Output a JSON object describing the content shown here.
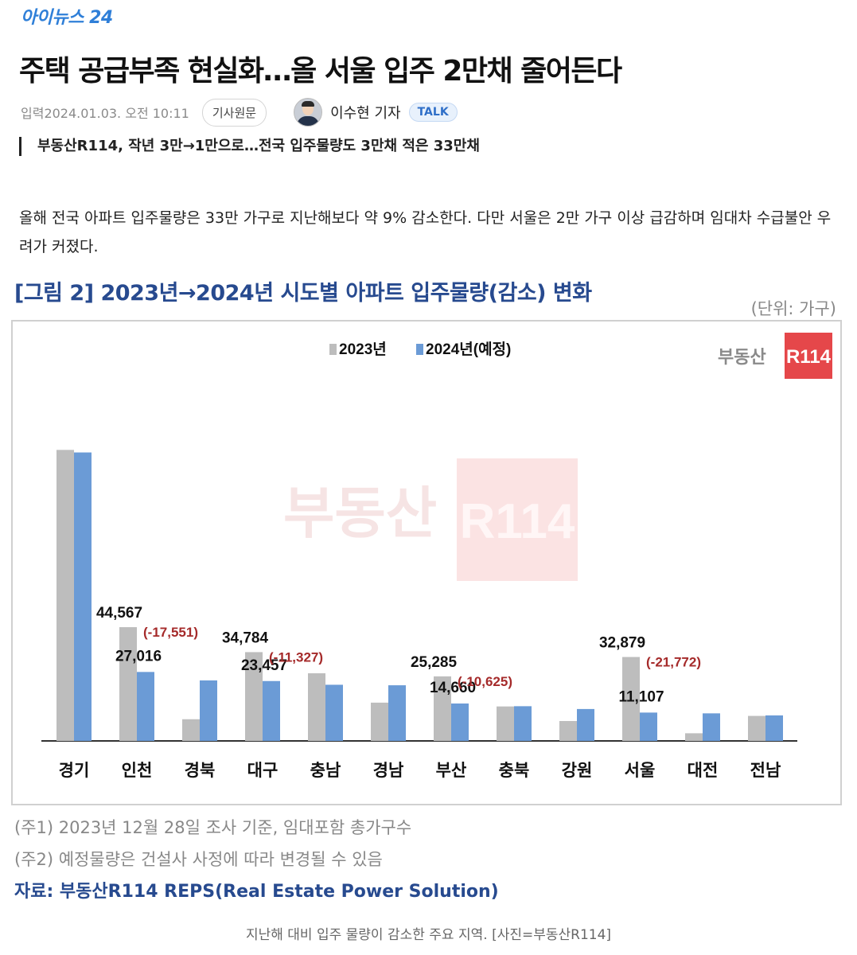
{
  "site": {
    "logo": "아이뉴스 24"
  },
  "article": {
    "headline": "주택 공급부족 현실화…올 서울 입주 2만채 줄어든다",
    "published": "입력2024.01.03. 오전 10:11",
    "original_button": "기사원문",
    "reporter": "이수현 기자",
    "talk_button": "TALK",
    "subheadline": "부동산R114, 작년 3만→1만으로…전국 입주물량도 3만채 적은 33만채",
    "body": "올해 전국 아파트 입주물량은 33만 가구로 지난해보다 약 9% 감소한다. 다만 서울은 2만 가구 이상 급감하며 임대차 수급불안 우려가 커졌다.",
    "photo_caption": "지난해 대비 입주 물량이 감소한 주요 지역. [사진=부동산R114]"
  },
  "figure": {
    "title": "[그림 2] 2023년→2024년 시도별 아파트 입주물량(감소) 변화",
    "unit": "(단위: 가구)",
    "brand_text": "부동산",
    "brand_badge": "R114",
    "watermark_text": "부동산",
    "watermark_badge": "R114",
    "note1": "(주1) 2023년 12월 28일 조사 기준, 임대포함 총가구수",
    "note2": "(주2) 예정물량은 건설사 사정에 따라 변경될 수 있음",
    "source": "자료: 부동산R114 REPS(Real Estate Power Solution)"
  },
  "colors": {
    "series_2023": "#bdbdbd",
    "series_2024": "#6b9bd6",
    "decrease_label": "#a52a2a",
    "brand_red": "#e5474a"
  },
  "chart_data": {
    "type": "bar",
    "title": "",
    "xlabel": "",
    "ylabel": "",
    "categories": [
      "경기",
      "인천",
      "경북",
      "대구",
      "충남",
      "경남",
      "부산",
      "충북",
      "강원",
      "서울",
      "대전",
      "전남"
    ],
    "series": [
      {
        "name": "2023년",
        "values": [
          114000,
          44567,
          8500,
          34784,
          26500,
          15000,
          25285,
          13500,
          7800,
          32879,
          3000,
          9800
        ]
      },
      {
        "name": "2024년(예정)",
        "values": [
          113000,
          27016,
          23700,
          23457,
          22000,
          21800,
          14660,
          13600,
          12500,
          11107,
          10800,
          10000
        ]
      }
    ],
    "value_labels": [
      {
        "category": "인천",
        "v2023": "44,567",
        "v2024": "27,016",
        "change": "(-17,551)"
      },
      {
        "category": "대구",
        "v2023": "34,784",
        "v2024": "23,457",
        "change": "(-11,327)"
      },
      {
        "category": "부산",
        "v2023": "25,285",
        "v2024": "14,660",
        "change": "(-10,625)"
      },
      {
        "category": "서울",
        "v2023": "32,879",
        "v2024": "11,107",
        "change": "(-21,772)"
      }
    ],
    "ylim": [
      0,
      130000
    ],
    "grid": false,
    "legend": "top-center"
  }
}
